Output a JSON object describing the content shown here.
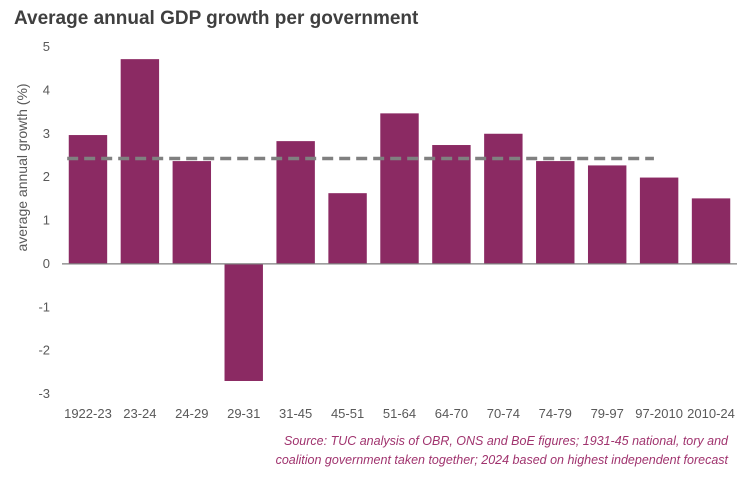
{
  "chart_data": {
    "type": "bar",
    "title": "Average annual GDP growth per government",
    "ylabel": "average annual growth (%)",
    "xlabel": "",
    "categories": [
      "1922-23",
      "23-24",
      "24-29",
      "29-31",
      "31-45",
      "45-51",
      "51-64",
      "64-70",
      "70-74",
      "74-79",
      "79-97",
      "97-2010",
      "2010-24"
    ],
    "values": [
      2.97,
      4.72,
      2.37,
      -2.7,
      2.83,
      1.63,
      3.47,
      2.74,
      3.0,
      2.37,
      2.27,
      1.99,
      1.51
    ],
    "ylim": [
      -3,
      5
    ],
    "yticks": [
      5,
      4,
      3,
      2,
      1,
      0,
      -1,
      -2,
      -3
    ],
    "reference_line": {
      "value": 2.43,
      "style": "dashed"
    },
    "grid": false,
    "colors": {
      "bar": "#8b2a63",
      "reference": "#808080",
      "axis": "#7f7f7f",
      "text": "#595959",
      "source": "#a0336e"
    }
  },
  "source": {
    "line1": "Source: TUC analysis of OBR, ONS and BoE figures; 1931-45 national, tory and",
    "line2": "coalition government taken together; 2024 based on highest independent forecast"
  }
}
